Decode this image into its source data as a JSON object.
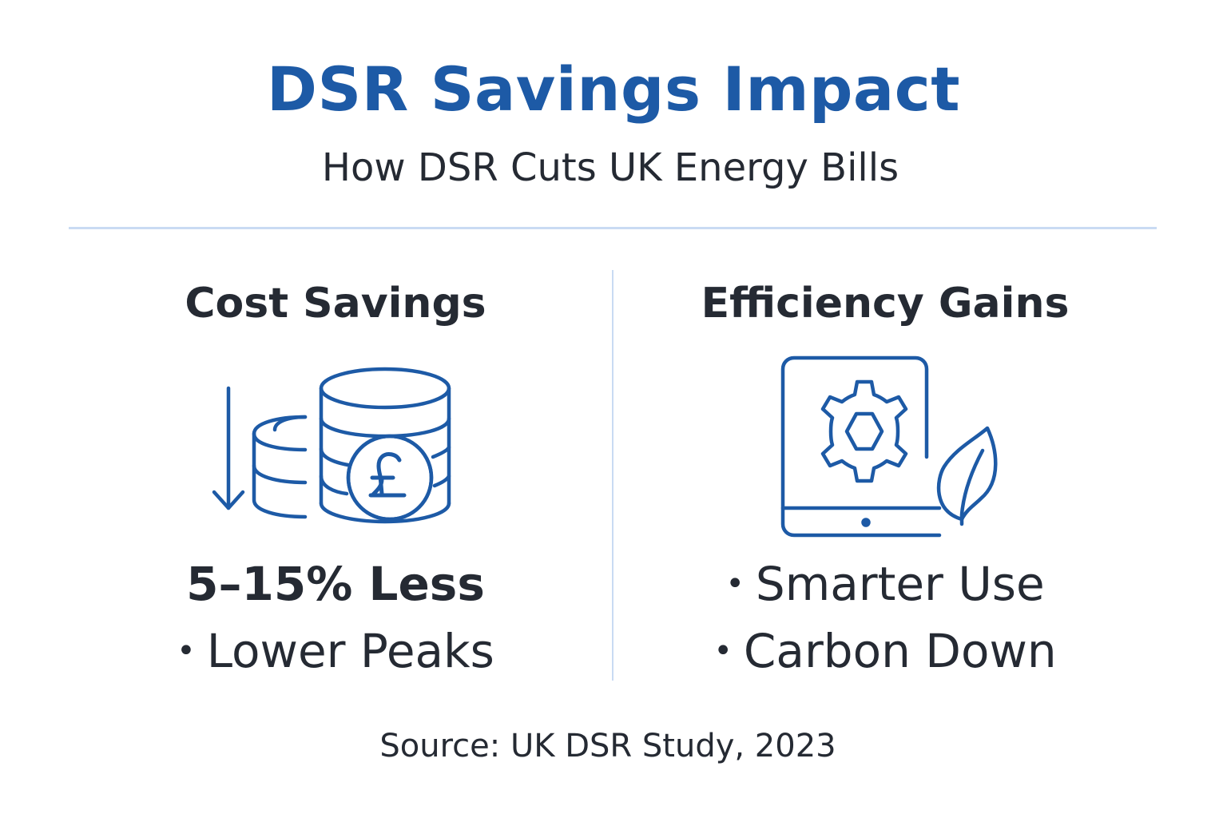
{
  "header": {
    "title": "DSR Savings Impact",
    "subtitle": "How DSR Cuts UK Energy Bills"
  },
  "cost_column": {
    "heading": "Cost Savings",
    "icon": "coin-stack-pound-down-arrow-icon",
    "stat": "5–15% Less",
    "bullet": "Lower Peaks"
  },
  "efficiency_column": {
    "heading": "Efficiency Gains",
    "icon": "tablet-gear-leaf-icon",
    "bullets": [
      "Smarter Use",
      "Carbon Down"
    ]
  },
  "footer": {
    "source": "Source: UK DSR Study, 2023"
  },
  "colors": {
    "accent": "#1d5aa6",
    "text": "#252a33",
    "divider": "#c9dbf3"
  }
}
